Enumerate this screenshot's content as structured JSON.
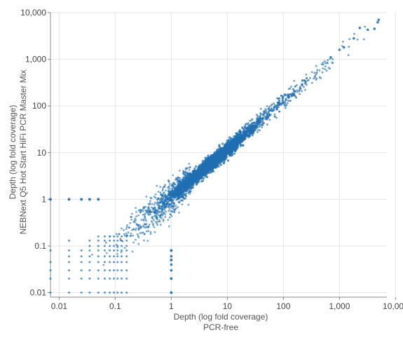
{
  "chart_data": {
    "type": "scatter",
    "title": "",
    "x_scale": "log",
    "y_scale": "log",
    "xlim": [
      0.007,
      7000
    ],
    "ylim": [
      0.008,
      10000
    ],
    "grid": true,
    "legend": "none",
    "xlabel": "Depth (log fold coverage)",
    "xlabel_sub": "PCR-free",
    "ylabel": "Depth (log fold coverage)",
    "ylabel_sub": "NEBNext Q5 Hot Start HiFi PCR Master Mix",
    "x_ticks": [
      {
        "value": 0.01,
        "label": "0.01"
      },
      {
        "value": 0.1,
        "label": "0.1"
      },
      {
        "value": 1,
        "label": "1"
      },
      {
        "value": 10,
        "label": "10"
      },
      {
        "value": 100,
        "label": "100"
      },
      {
        "value": 1000,
        "label": "1,000"
      },
      {
        "value": 10000,
        "label": "10,000"
      }
    ],
    "y_ticks": [
      {
        "value": 0.01,
        "label": "0.01"
      },
      {
        "value": 0.1,
        "label": "0.1"
      },
      {
        "value": 1,
        "label": "1"
      },
      {
        "value": 10,
        "label": "10"
      },
      {
        "value": 100,
        "label": "100"
      },
      {
        "value": 1000,
        "label": "1,000"
      },
      {
        "value": 10000,
        "label": "10,000"
      }
    ],
    "series": [
      {
        "color": "#1f6fb2",
        "extreme_points": [
          {
            "x": 5000,
            "y": 7000
          },
          {
            "x": 4800,
            "y": 6200
          },
          {
            "x": 4200,
            "y": 4500
          },
          {
            "x": 3200,
            "y": 4300
          },
          {
            "x": 2300,
            "y": 4700
          },
          {
            "x": 1800,
            "y": 2800
          },
          {
            "x": 1200,
            "y": 1800
          },
          {
            "x": 1000,
            "y": 1600
          },
          {
            "x": 700,
            "y": 1100
          },
          {
            "x": 0.007,
            "y": 1
          },
          {
            "x": 0.015,
            "y": 1
          },
          {
            "x": 0.025,
            "y": 1
          },
          {
            "x": 0.035,
            "y": 1
          },
          {
            "x": 0.05,
            "y": 1
          },
          {
            "x": 1,
            "y": 0.08
          },
          {
            "x": 1,
            "y": 0.05
          },
          {
            "x": 1,
            "y": 0.02
          },
          {
            "x": 1,
            "y": 0.01
          }
        ]
      }
    ]
  }
}
